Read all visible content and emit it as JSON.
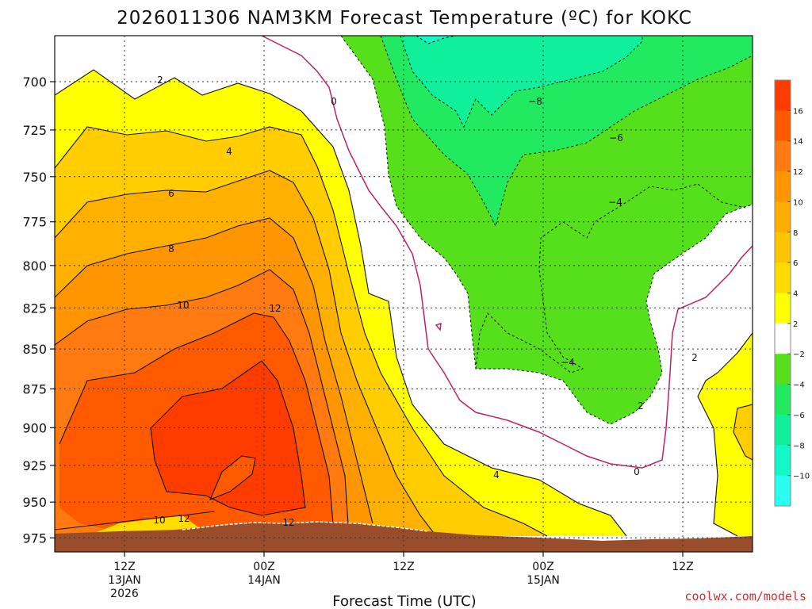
{
  "chart_data": {
    "type": "contour",
    "title": "2026011306 NAM3KM Forecast Temperature (ºC) for KOKC",
    "xlabel": "Forecast Time (UTC)",
    "ylabel": "",
    "y_ticks": [
      "700",
      "725",
      "750",
      "775",
      "800",
      "825",
      "850",
      "875",
      "900",
      "925",
      "950",
      "975"
    ],
    "y_values": [
      700,
      725,
      750,
      775,
      800,
      825,
      850,
      875,
      900,
      925,
      950,
      975
    ],
    "ylim": [
      677,
      985
    ],
    "y_scale": "pressure (log)",
    "x_ticks": [
      {
        "hour": 0,
        "label": "12Z",
        "sub1": "13JAN",
        "sub2": "2026"
      },
      {
        "hour": 12,
        "label": "00Z",
        "sub1": "14JAN",
        "sub2": ""
      },
      {
        "hour": 24,
        "label": "12Z",
        "sub1": "",
        "sub2": ""
      },
      {
        "hour": 36,
        "label": "00Z",
        "sub1": "15JAN",
        "sub2": ""
      },
      {
        "hour": 48,
        "label": "12Z",
        "sub1": "",
        "sub2": ""
      }
    ],
    "xlim_hours": [
      -6,
      54
    ],
    "grid": true,
    "colorbar": {
      "ticks": [
        "16",
        "14",
        "12",
        "10",
        "8",
        "6",
        "4",
        "2",
        "−2",
        "−4",
        "−6",
        "−8",
        "−10"
      ],
      "colors": [
        "#ff3c00",
        "#ff5a00",
        "#ff7a10",
        "#ff9500",
        "#ffac00",
        "#ffc400",
        "#ffdc00",
        "#ffff00",
        "#ffffff",
        "#56e01c",
        "#22ea60",
        "#10f09a",
        "#12f8c8",
        "#28ffee"
      ]
    },
    "contour_labels": [
      "2",
      "0",
      "4",
      "6",
      "8",
      "10",
      "12",
      "10",
      "12",
      "12",
      "−8",
      "−6",
      "−4",
      "−4",
      "2",
      "0",
      "4",
      "2"
    ],
    "ground_color": "#9a4d2a"
  },
  "credit": "coolwx.com/models"
}
